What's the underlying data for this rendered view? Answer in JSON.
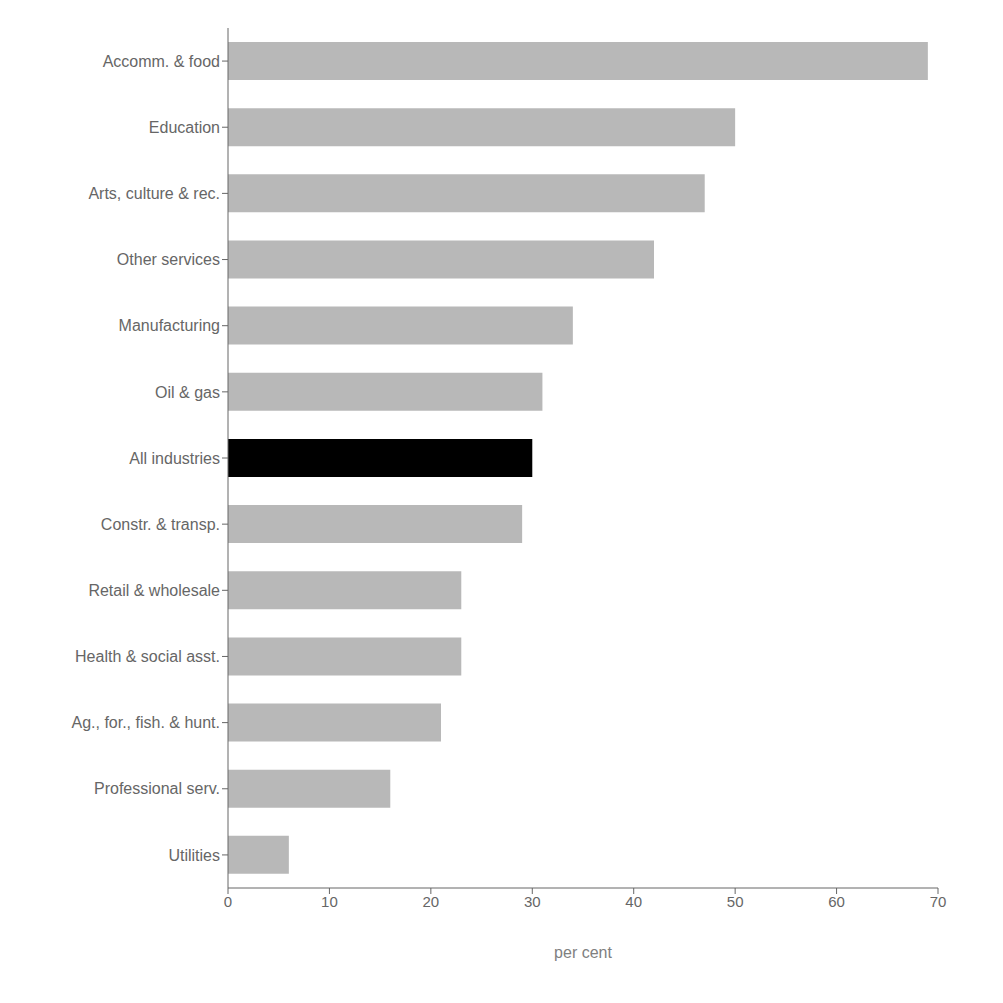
{
  "chart_data": {
    "type": "bar",
    "orientation": "horizontal",
    "categories": [
      "Accomm. & food",
      "Education",
      "Arts, culture & rec.",
      "Other services",
      "Manufacturing",
      "Oil & gas",
      "All industries",
      "Constr. & transp.",
      "Retail & wholesale",
      "Health & social asst.",
      "Ag., for., fish. & hunt.",
      "Professional serv.",
      "Utilities"
    ],
    "values": [
      69,
      50,
      47,
      42,
      34,
      31,
      30,
      29,
      23,
      23,
      21,
      16,
      6
    ],
    "colors": [
      "#b8b8b8",
      "#b8b8b8",
      "#b8b8b8",
      "#b8b8b8",
      "#b8b8b8",
      "#b8b8b8",
      "#000000",
      "#b8b8b8",
      "#b8b8b8",
      "#b8b8b8",
      "#b8b8b8",
      "#b8b8b8",
      "#b8b8b8"
    ],
    "xlabel": "per cent",
    "xlim": [
      0,
      70
    ],
    "xticks": [
      0,
      10,
      20,
      30,
      40,
      50,
      60,
      70
    ],
    "grid": false
  }
}
